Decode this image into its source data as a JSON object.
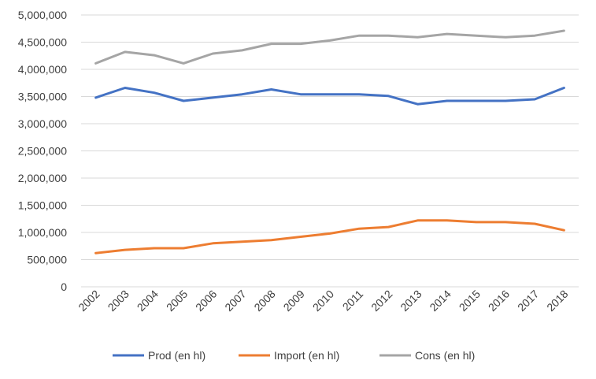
{
  "chart_data": {
    "type": "line",
    "title": "",
    "xlabel": "",
    "ylabel": "",
    "categories": [
      "2002",
      "2003",
      "2004",
      "2005",
      "2006",
      "2007",
      "2008",
      "2009",
      "2010",
      "2011",
      "2012",
      "2013",
      "2014",
      "2015",
      "2016",
      "2017",
      "2018"
    ],
    "ylim": [
      0,
      5000000
    ],
    "yticks": [
      0,
      500000,
      1000000,
      1500000,
      2000000,
      2500000,
      3000000,
      3500000,
      4000000,
      4500000,
      5000000
    ],
    "ytick_labels": [
      "0",
      "500,000",
      "1,000,000",
      "1,500,000",
      "2,000,000",
      "2,500,000",
      "3,000,000",
      "3,500,000",
      "4,000,000",
      "4,500,000",
      "5,000,000"
    ],
    "grid": "horizontal",
    "legend_position": "bottom",
    "series": [
      {
        "name": "Prod (en hl)",
        "color": "#4472C4",
        "values": [
          3480000,
          3660000,
          3570000,
          3420000,
          3480000,
          3540000,
          3630000,
          3540000,
          3540000,
          3540000,
          3510000,
          3360000,
          3420000,
          3420000,
          3420000,
          3450000,
          3660000
        ]
      },
      {
        "name": "Import (en hl)",
        "color": "#ED7D31",
        "values": [
          620000,
          680000,
          710000,
          710000,
          800000,
          830000,
          860000,
          920000,
          980000,
          1070000,
          1100000,
          1220000,
          1220000,
          1190000,
          1190000,
          1160000,
          1040000
        ]
      },
      {
        "name": "Cons (en hl)",
        "color": "#A5A5A5",
        "values": [
          4110000,
          4320000,
          4260000,
          4110000,
          4290000,
          4350000,
          4470000,
          4470000,
          4530000,
          4620000,
          4620000,
          4590000,
          4650000,
          4620000,
          4590000,
          4620000,
          4710000
        ]
      }
    ]
  }
}
